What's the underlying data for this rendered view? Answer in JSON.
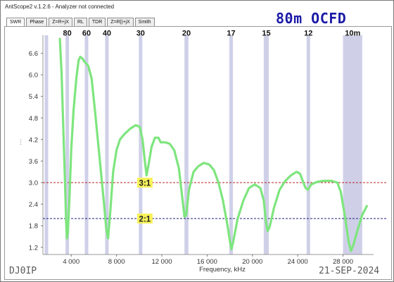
{
  "window": {
    "title": "AntScope2 v.1.2.6 - Analyzer not connected"
  },
  "banner": "80m OCFD",
  "tabs": [
    {
      "label": "SWR",
      "active": true
    },
    {
      "label": "Phase",
      "active": false
    },
    {
      "label": "Z=R+jX",
      "active": false
    },
    {
      "label": "RL",
      "active": false
    },
    {
      "label": "TDR",
      "active": false
    },
    {
      "label": "Z=R||+jX",
      "active": false
    },
    {
      "label": "Smith",
      "active": false
    }
  ],
  "footer": {
    "callsign": "DJ0IP",
    "date": "21-SEP-2024"
  },
  "colors": {
    "curve": "#7ee57e",
    "band_shade": "#cfd0e8",
    "ref_300": "#b52020",
    "ref_200": "#1c1c7a",
    "label_bg": "#f7f25a",
    "band_label": "#111111"
  },
  "chart_data": {
    "type": "line",
    "title": "",
    "xlabel": "Frequency, kHz",
    "ylabel": "",
    "xlim": [
      1500,
      30700
    ],
    "ylim": [
      1.0,
      7.1
    ],
    "x_ticks": [
      {
        "value": 4000,
        "label": "4 000"
      },
      {
        "value": 8000,
        "label": "8 000"
      },
      {
        "value": 12000,
        "label": "12 000"
      },
      {
        "value": 16000,
        "label": "16 000"
      },
      {
        "value": 20000,
        "label": "20 000"
      },
      {
        "value": 24000,
        "label": "24 000"
      },
      {
        "value": 28000,
        "label": "28 000"
      }
    ],
    "y_ticks": [
      {
        "value": 1.2,
        "label": "1.2"
      },
      {
        "value": 1.8,
        "label": "1.8"
      },
      {
        "value": 2.4,
        "label": "2.4"
      },
      {
        "value": 3.0,
        "label": "3.0"
      },
      {
        "value": 3.6,
        "label": "3.6"
      },
      {
        "value": 4.2,
        "label": "4.2"
      },
      {
        "value": 4.8,
        "label": "4.8"
      },
      {
        "value": 5.4,
        "label": "5.4"
      },
      {
        "value": 6.0,
        "label": "6.0"
      },
      {
        "value": 6.6,
        "label": "6.6"
      }
    ],
    "ham_bands": [
      {
        "label": "80",
        "from": 3500,
        "to": 3800
      },
      {
        "label": "60",
        "from": 5300,
        "to": 5400
      },
      {
        "label": "40",
        "from": 7000,
        "to": 7300
      },
      {
        "label": "30",
        "from": 10100,
        "to": 10150
      },
      {
        "label": "20",
        "from": 14000,
        "to": 14350
      },
      {
        "label": "17",
        "from": 18068,
        "to": 18168
      },
      {
        "label": "15",
        "from": 21000,
        "to": 21450
      },
      {
        "label": "12",
        "from": 24890,
        "to": 24990
      },
      {
        "label": "10m",
        "from": 28000,
        "to": 29700
      }
    ],
    "extra_band_lines": [
      1810
    ],
    "reference_lines": [
      {
        "value": 3.0,
        "label": "3:1",
        "label_x": 10500
      },
      {
        "value": 2.0,
        "label": "2:1",
        "label_x": 10500
      }
    ],
    "series": [
      {
        "values": [
          [
            3000,
            7.0
          ],
          [
            3150,
            6.0
          ],
          [
            3300,
            4.5
          ],
          [
            3450,
            3.0
          ],
          [
            3550,
            1.9
          ],
          [
            3620,
            1.45
          ],
          [
            3700,
            1.6
          ],
          [
            3850,
            2.6
          ],
          [
            4000,
            3.9
          ],
          [
            4200,
            5.0
          ],
          [
            4450,
            5.9
          ],
          [
            4650,
            6.4
          ],
          [
            4800,
            6.5
          ],
          [
            5000,
            6.45
          ],
          [
            5200,
            6.35
          ],
          [
            5500,
            6.25
          ],
          [
            5800,
            5.9
          ],
          [
            6100,
            5.0
          ],
          [
            6500,
            3.7
          ],
          [
            6900,
            2.4
          ],
          [
            7100,
            1.7
          ],
          [
            7250,
            1.45
          ],
          [
            7450,
            2.2
          ],
          [
            7700,
            3.3
          ],
          [
            8000,
            3.9
          ],
          [
            8300,
            4.2
          ],
          [
            8700,
            4.35
          ],
          [
            9200,
            4.5
          ],
          [
            9700,
            4.6
          ],
          [
            10050,
            4.55
          ],
          [
            10300,
            4.2
          ],
          [
            10500,
            3.6
          ],
          [
            10650,
            3.2
          ],
          [
            10800,
            3.45
          ],
          [
            11100,
            4.0
          ],
          [
            11400,
            4.25
          ],
          [
            11700,
            4.25
          ],
          [
            11900,
            4.12
          ],
          [
            12300,
            4.12
          ],
          [
            12700,
            4.08
          ],
          [
            13100,
            3.9
          ],
          [
            13500,
            3.4
          ],
          [
            13800,
            2.6
          ],
          [
            14000,
            2.05
          ],
          [
            14150,
            2.1
          ],
          [
            14400,
            2.8
          ],
          [
            14800,
            3.3
          ],
          [
            15200,
            3.45
          ],
          [
            15700,
            3.55
          ],
          [
            16200,
            3.5
          ],
          [
            16600,
            3.35
          ],
          [
            17000,
            3.0
          ],
          [
            17400,
            2.5
          ],
          [
            17800,
            1.8
          ],
          [
            18050,
            1.3
          ],
          [
            18150,
            1.15
          ],
          [
            18300,
            1.35
          ],
          [
            18700,
            2.0
          ],
          [
            19200,
            2.5
          ],
          [
            19700,
            2.85
          ],
          [
            20200,
            2.95
          ],
          [
            20700,
            2.85
          ],
          [
            21000,
            2.5
          ],
          [
            21200,
            1.9
          ],
          [
            21350,
            1.65
          ],
          [
            21550,
            1.8
          ],
          [
            21900,
            2.3
          ],
          [
            22400,
            2.8
          ],
          [
            22900,
            3.05
          ],
          [
            23400,
            3.2
          ],
          [
            23900,
            3.3
          ],
          [
            24200,
            3.25
          ],
          [
            24500,
            3.0
          ],
          [
            24700,
            2.85
          ],
          [
            24900,
            2.8
          ],
          [
            25200,
            2.95
          ],
          [
            25700,
            3.02
          ],
          [
            26300,
            3.05
          ],
          [
            27000,
            3.05
          ],
          [
            27500,
            3.0
          ],
          [
            27800,
            2.75
          ],
          [
            28200,
            2.0
          ],
          [
            28500,
            1.35
          ],
          [
            28700,
            1.1
          ],
          [
            28900,
            1.25
          ],
          [
            29300,
            1.7
          ],
          [
            29700,
            2.1
          ],
          [
            30100,
            2.35
          ]
        ]
      }
    ]
  }
}
